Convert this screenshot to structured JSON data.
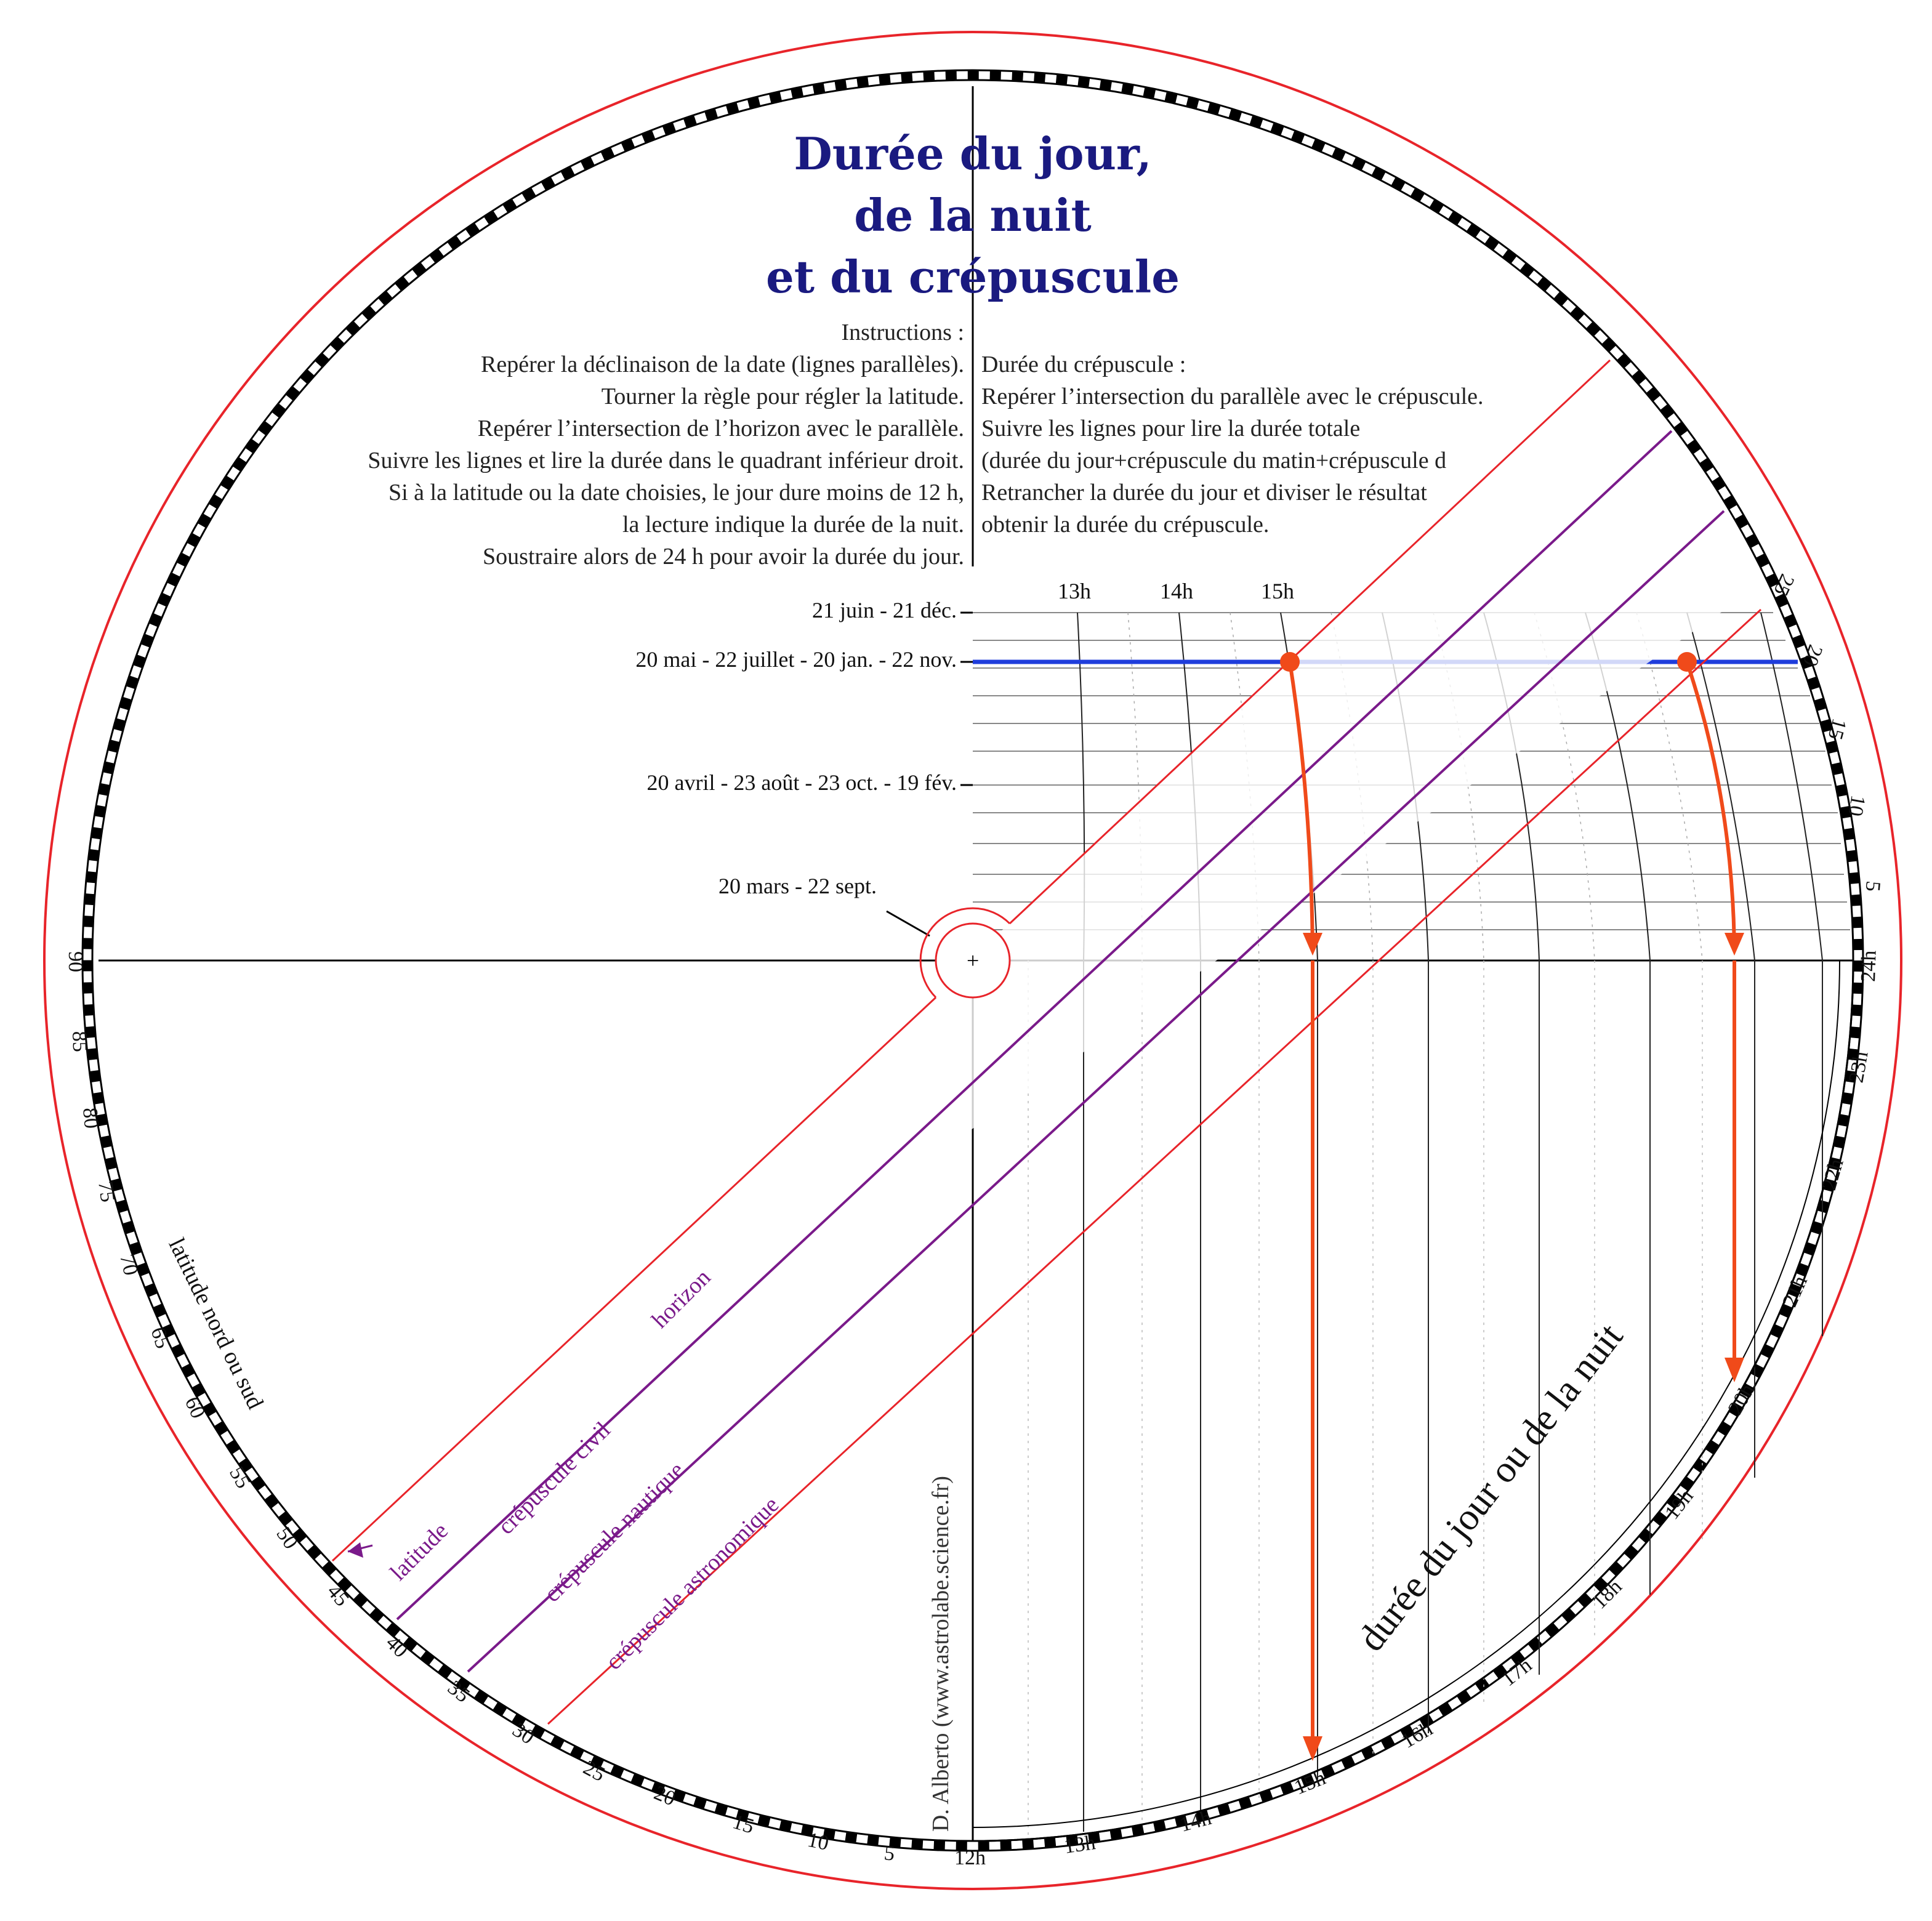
{
  "title": {
    "line1": "Durée du jour,",
    "line2": "de la nuit",
    "line3": "et du crépuscule"
  },
  "instructions_left": [
    "Instructions :",
    "Repérer la déclinaison de la date (lignes parallèles).",
    "Tourner la règle pour régler la latitude.",
    "Repérer l’intersection de l’horizon avec le parallèle.",
    "Suivre les lignes et lire la durée dans le quadrant inférieur droit.",
    "Si à la latitude ou la date choisies, le jour dure moins de 12 h,",
    "la lecture indique la durée de la nuit.",
    "Soustraire alors de 24 h pour avoir la durée du jour."
  ],
  "instructions_right": [
    "Durée du crépuscule :",
    "Repérer l’intersection du parallèle avec le crépuscule.",
    "Suivre les lignes pour lire la durée totale",
    "(durée du jour+crépuscule du matin+crépuscule d",
    "Retrancher la durée du jour et diviser le résultat",
    "obtenir la durée du crépuscule."
  ],
  "date_labels": {
    "d1": "21 juin - 21 déc.",
    "d2": "20 mai - 22 juillet - 20 jan. - 22 nov.",
    "d3": "20 avril - 23 août - 23 oct. - 19 fév.",
    "d4": "20 mars - 22 sept."
  },
  "top_hours": [
    "13h",
    "14h",
    "15h"
  ],
  "rim_hours": [
    "12h",
    "13h",
    "14h",
    "15h",
    "16h",
    "17h",
    "18h",
    "19h",
    "20h",
    "21h",
    "22h",
    "23h",
    "24h"
  ],
  "declination_ticks": [
    "5",
    "10",
    "15",
    "20",
    "25"
  ],
  "latitude_ticks": [
    "5",
    "10",
    "15",
    "20",
    "25",
    "30",
    "35",
    "40",
    "45",
    "50",
    "55",
    "60",
    "65",
    "70",
    "75",
    "80",
    "85",
    "90"
  ],
  "rule_labels": {
    "horizon": "horizon",
    "civil": "crépuscule civil",
    "nautique": "crépuscule nautique",
    "astronomique": "crépuscule astronomique",
    "latitude": "latitude"
  },
  "latitude_caption": "latitude nord ou sud",
  "duration_caption": "durée du jour ou de la nuit",
  "credit": "D. Alberto (www.astrolabe.science.fr)",
  "center_mark": "+",
  "colors": {
    "title": "#1a1a80",
    "rim": "#e8242a",
    "rule": "#e8242a",
    "twilight": "#7a1a8a",
    "parallel": "#1f3ddc",
    "arrow": "#f04a1a"
  }
}
